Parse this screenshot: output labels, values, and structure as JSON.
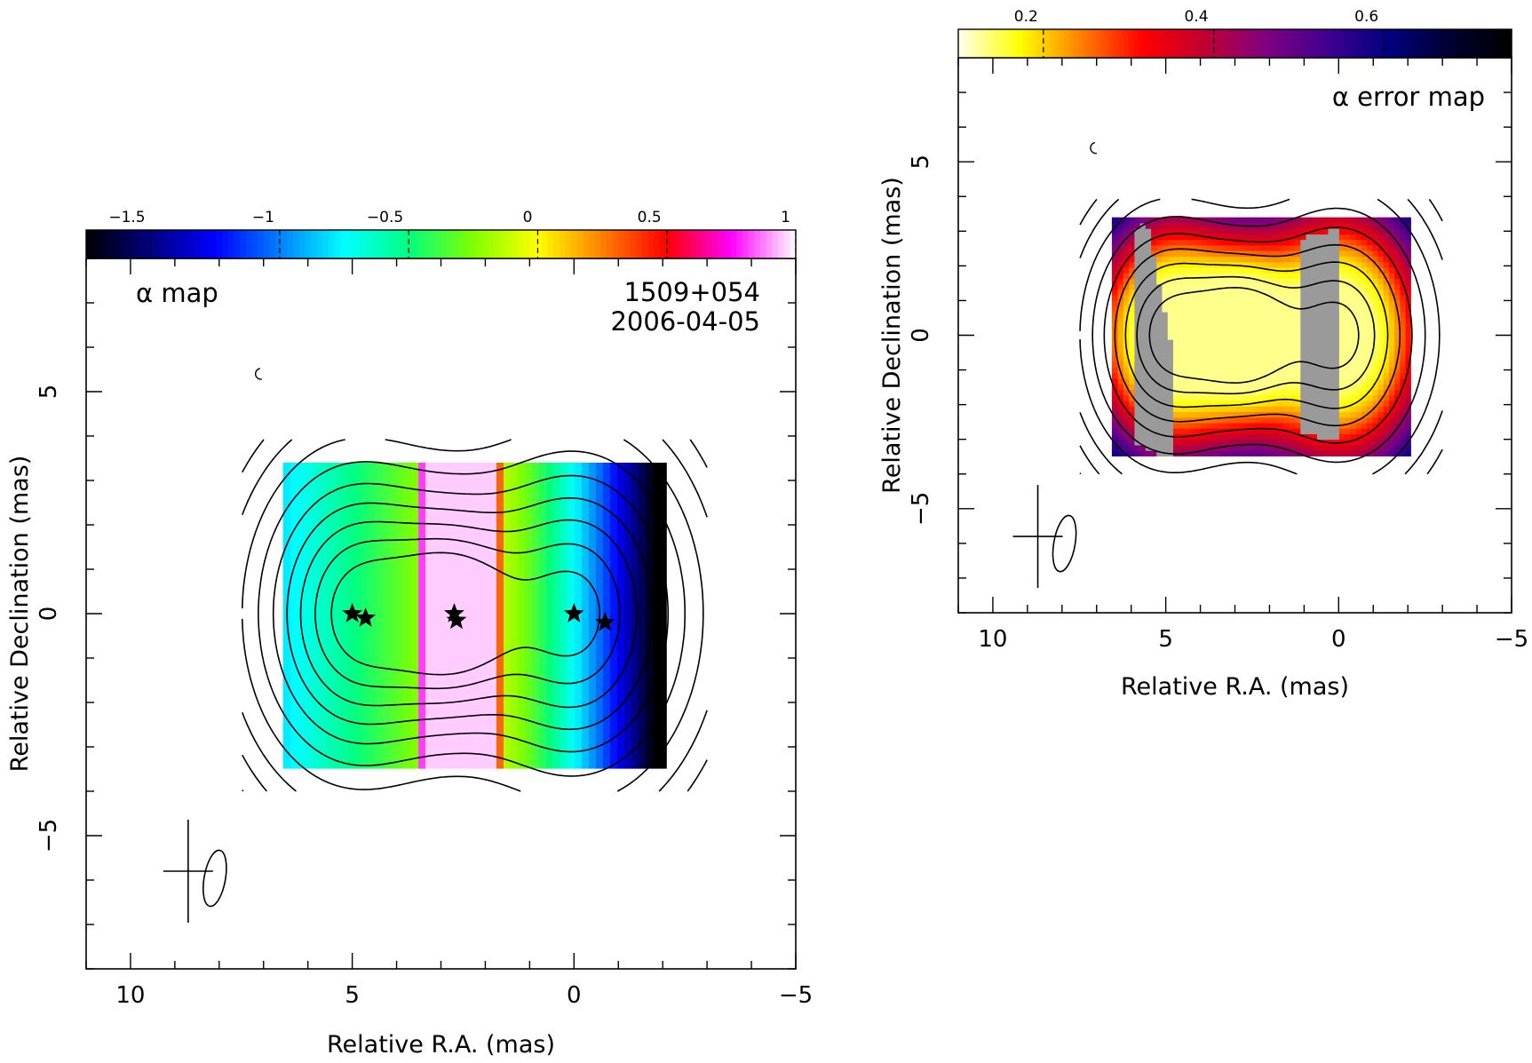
{
  "chart_data": [
    {
      "id": "alpha",
      "type": "heatmap",
      "title": "α map",
      "source": "1509+054",
      "date": "2006-04-05",
      "xlabel": "Relative R.A. (mas)",
      "ylabel": "Relative Declination (mas)",
      "xlim": [
        11,
        -5
      ],
      "ylim": [
        -8,
        8
      ],
      "x_ticks": [
        10,
        5,
        0,
        -5
      ],
      "y_ticks": [
        -5,
        0,
        5
      ],
      "x_tick_labels": [
        "10",
        "5",
        "0",
        "−5"
      ],
      "y_tick_labels": [
        "−5",
        "0",
        "5"
      ],
      "colorbar": {
        "range": [
          -1.75,
          1
        ],
        "ticks": [
          -1.5,
          -1,
          -0.5,
          0,
          0.5,
          1
        ],
        "labels": [
          "−1.5",
          "−1",
          "−0.5",
          "0",
          "0.5",
          "1"
        ],
        "colormap": [
          "#000000",
          "#000080",
          "#0000ff",
          "#0080ff",
          "#00ffff",
          "#00ff80",
          "#80ff00",
          "#ffff00",
          "#ff8000",
          "#ff0000",
          "#ff00ff",
          "#ffffff"
        ]
      },
      "components": [
        {
          "x": 4.9,
          "y": 0.0,
          "region_x": [
            3.6,
            6.3
          ],
          "alpha_edges": [
            -0.25,
            -0.7
          ]
        },
        {
          "x": 2.7,
          "y": 0.0,
          "region_x": [
            1.6,
            3.6
          ],
          "alpha_edges": [
            0.7,
            0.95
          ]
        },
        {
          "x": 0.0,
          "y": 0.0,
          "region_x": [
            -1.75,
            1.6
          ],
          "alpha_edges": [
            -0.2,
            -1.7
          ]
        }
      ],
      "stars": [
        [
          5.0,
          0.0
        ],
        [
          4.7,
          -0.1
        ],
        [
          2.7,
          0.0
        ],
        [
          2.65,
          -0.15
        ],
        [
          0.0,
          0.0
        ],
        [
          -0.7,
          -0.2
        ]
      ],
      "beam": {
        "x": 8.0,
        "y": -5.8,
        "size": 1.4
      }
    },
    {
      "id": "error",
      "type": "heatmap",
      "title": "α error map",
      "xlabel": "Relative R.A. (mas)",
      "ylabel": "Relative Declination (mas)",
      "xlim": [
        11,
        -5
      ],
      "ylim": [
        -8,
        8
      ],
      "x_ticks": [
        10,
        5,
        0,
        -5
      ],
      "y_ticks": [
        -5,
        0,
        5
      ],
      "x_tick_labels": [
        "10",
        "5",
        "0",
        "−5"
      ],
      "y_tick_labels": [
        "−5",
        "0",
        "5"
      ],
      "colorbar": {
        "range": [
          0.1,
          0.75
        ],
        "ticks": [
          0.2,
          0.4,
          0.6
        ],
        "labels": [
          "0.2",
          "0.4",
          "0.6"
        ],
        "colormap": [
          "#fffff0",
          "#ffff00",
          "#ff8000",
          "#ff0000",
          "#c00030",
          "#800080",
          "#400090",
          "#000080",
          "#000030",
          "#000000"
        ]
      },
      "components": [
        {
          "x": 4.9,
          "y": 0.0,
          "region_x": [
            3.6,
            6.3
          ]
        },
        {
          "x": 2.7,
          "y": 0.0,
          "region_x": [
            1.6,
            3.6
          ]
        },
        {
          "x": 0.0,
          "y": 0.0,
          "region_x": [
            -1.75,
            1.6
          ]
        }
      ],
      "beam": {
        "x": 8.0,
        "y": -5.8,
        "size": 1.4
      }
    }
  ]
}
